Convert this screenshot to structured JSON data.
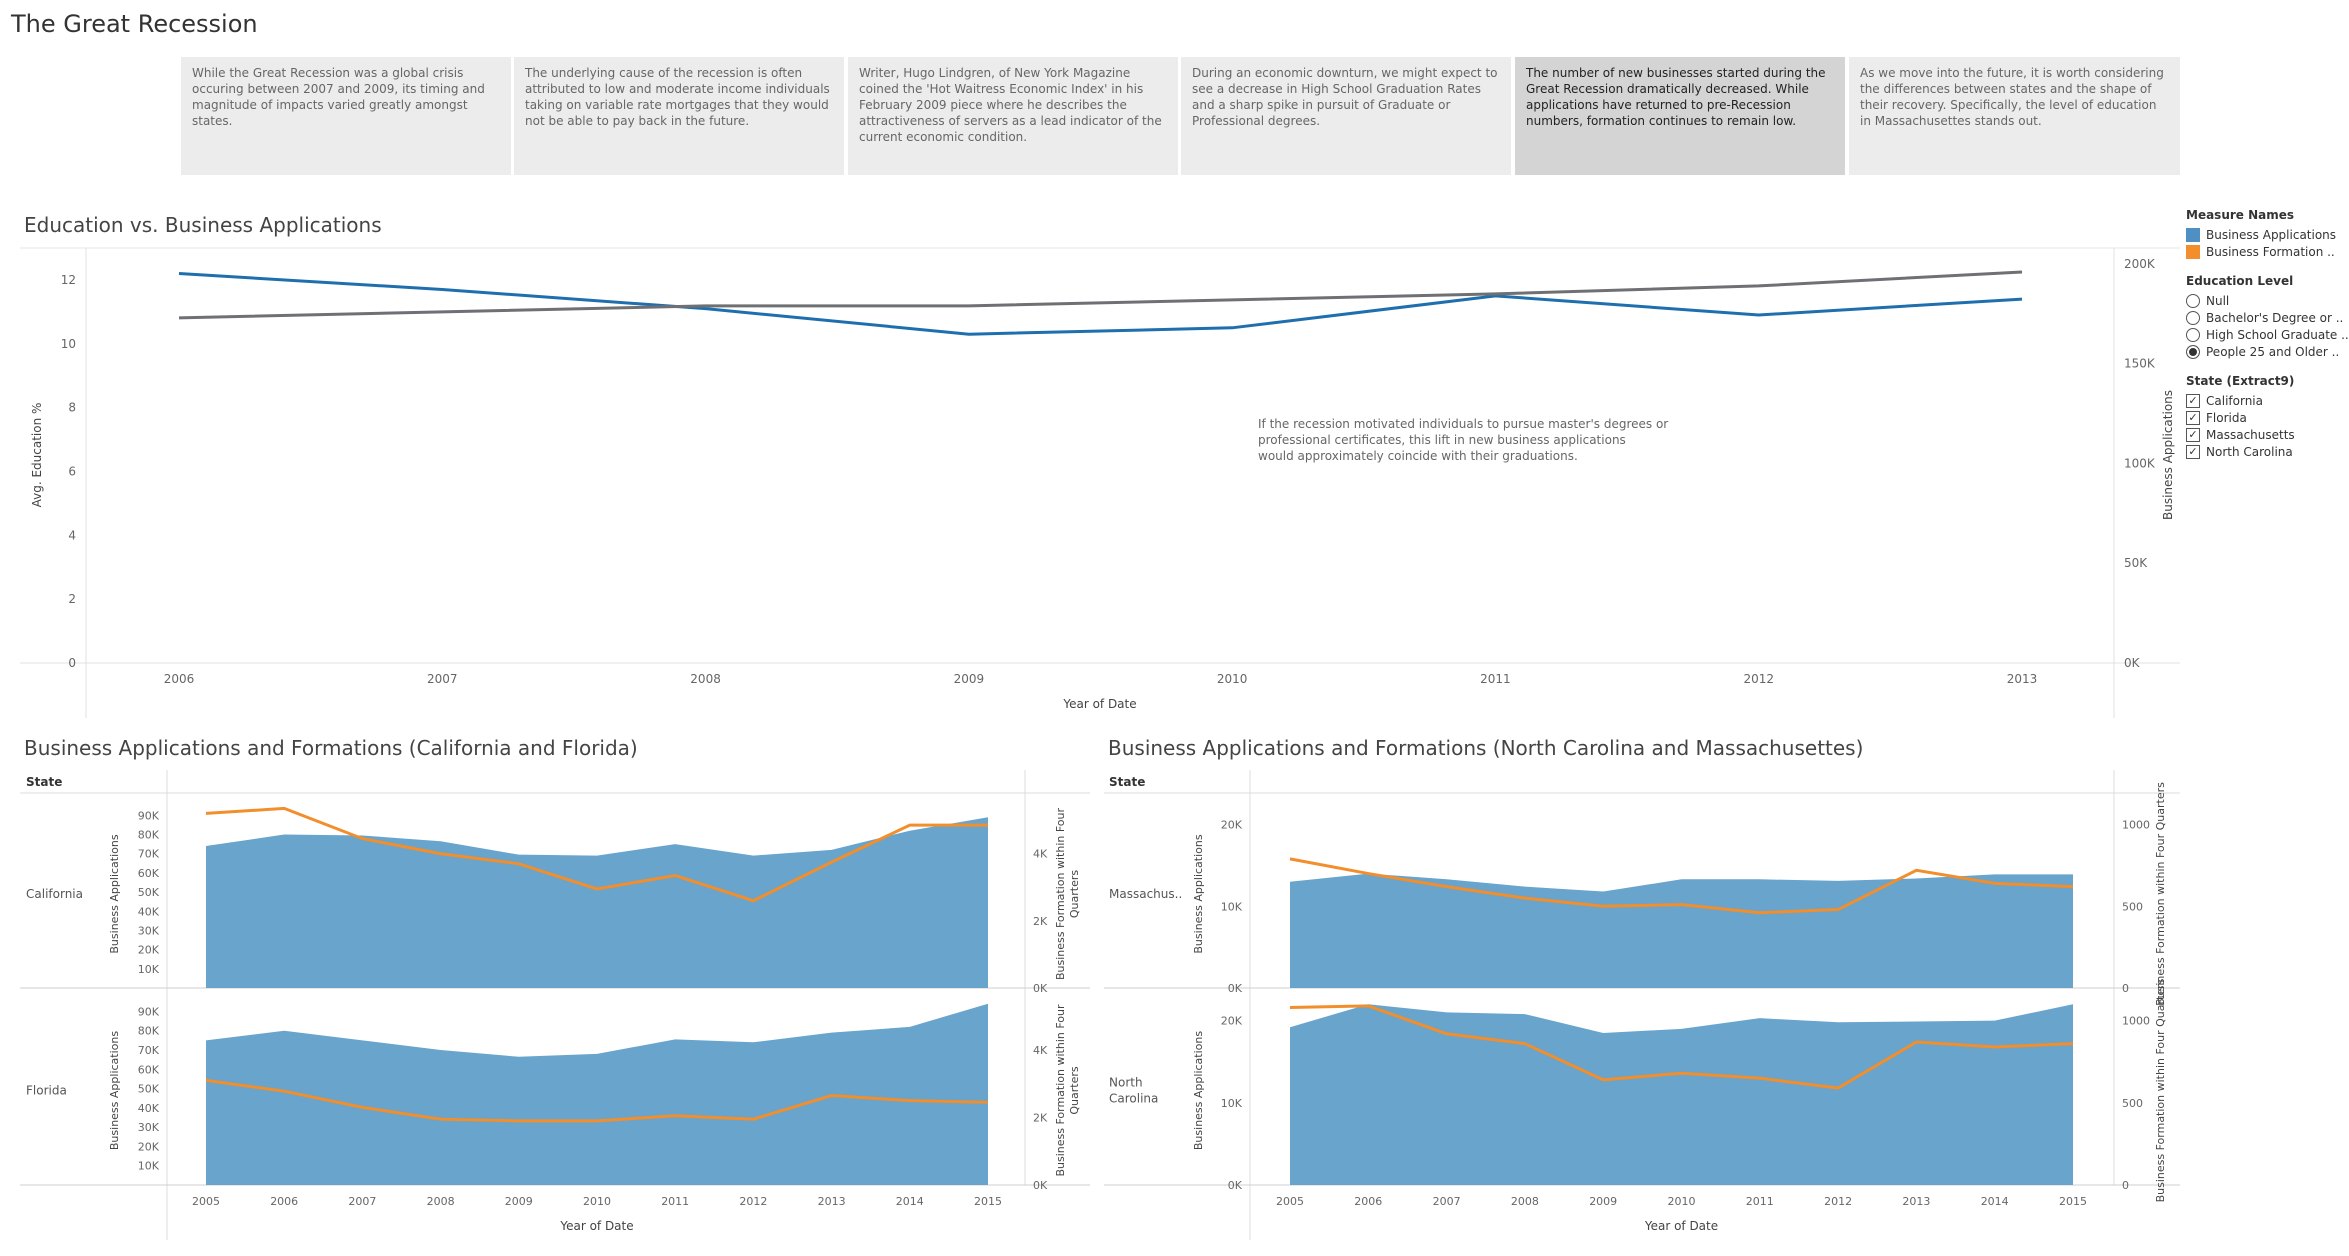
{
  "title": "The Great Recession",
  "story_points": [
    "While the Great Recession was a global crisis occuring between 2007 and 2009, its timing and magnitude of impacts varied greatly amongst states.",
    "The underlying cause of the recession is often attributed to low and moderate income individuals taking on variable rate mortgages that they would not be able to pay back in the future.",
    "Writer, Hugo Lindgren, of New York Magazine coined the 'Hot Waitress Economic Index' in his February 2009 piece where he describes the attractiveness of servers as a lead indicator of the current economic condition.",
    "During an economic downturn, we might expect to see a decrease in High School Graduation Rates and a sharp spike in pursuit of Graduate or Professional degrees.",
    "The number of new businesses started during the Great Recession dramatically decreased. While applications have returned to pre-Recession numbers, formation continues to remain low.",
    "As we move into the future, it is worth considering the differences between states and the shape of their recovery. Specifically, the level of education in Massachusettes stands out."
  ],
  "active_story_index": 4,
  "colors": {
    "blue": "#1f6fae",
    "gray": "#6f7074",
    "area": "#5b9cc8",
    "orange": "#f28e2b"
  },
  "legend": {
    "measure_title": "Measure Names",
    "measures": [
      {
        "label": "Business Applications",
        "color": "#4e8fc4"
      },
      {
        "label": "Business Formation ..",
        "color": "#f28e2b"
      }
    ],
    "education_title": "Education Level",
    "education": [
      {
        "label": "Null",
        "selected": false
      },
      {
        "label": "Bachelor's Degree or ..",
        "selected": false
      },
      {
        "label": "High School Graduate ..",
        "selected": false
      },
      {
        "label": "People 25 and Older ..",
        "selected": true
      }
    ],
    "state_title": "State (Extract9)",
    "states": [
      "California",
      "Florida",
      "Massachusetts",
      "North Carolina"
    ]
  },
  "chart_data": [
    {
      "type": "line",
      "title": "Education vs. Business Applications",
      "xlabel": "Year of Date",
      "ylabel": "Avg. Education %",
      "y2label": "Business Applications",
      "x": [
        2006,
        2007,
        2008,
        2009,
        2010,
        2011,
        2012,
        2013
      ],
      "ylim": [
        0,
        13
      ],
      "yticks": [
        0,
        2,
        4,
        6,
        8,
        10,
        12
      ],
      "y2lim": [
        0,
        208000
      ],
      "y2ticks": [
        0,
        50000,
        100000,
        150000,
        200000
      ],
      "y2ticklabels": [
        "0K",
        "50K",
        "100K",
        "150K",
        "200K"
      ],
      "series": [
        {
          "axis": "left",
          "color": "#1f6fae",
          "values": [
            12.2,
            11.7,
            11.1,
            10.3,
            10.5,
            11.5,
            10.9,
            11.4
          ]
        },
        {
          "axis": "right",
          "color": "#6f7074",
          "values": [
            173000,
            176000,
            179000,
            179000,
            182000,
            185000,
            189000,
            196000
          ]
        }
      ],
      "annotation": "If the recession motivated individuals to pursue master's degrees or professional certificates, this lift in new business applications would approximately coincide with their graduations."
    },
    {
      "type": "area",
      "title": "Business Applications and Formations (California and Florida)",
      "xlabel": "Year of Date",
      "row_header": "State",
      "x": [
        2005,
        2006,
        2007,
        2008,
        2009,
        2010,
        2011,
        2012,
        2013,
        2014,
        2015
      ],
      "panels": [
        {
          "state": "California",
          "ylabel": "Business Applications",
          "y2label": "Business Formation within Four Quarters",
          "ylim": [
            0,
            98000
          ],
          "yticks": [
            10000,
            20000,
            30000,
            40000,
            50000,
            60000,
            70000,
            80000,
            90000
          ],
          "yticklabels": [
            "10K",
            "20K",
            "30K",
            "40K",
            "50K",
            "60K",
            "70K",
            "80K",
            "90K"
          ],
          "y2lim": [
            0,
            5600
          ],
          "y2ticks": [
            0,
            2000,
            4000
          ],
          "y2ticklabels": [
            "0K",
            "2K",
            "4K"
          ],
          "applications": [
            74000,
            80000,
            79500,
            76500,
            69500,
            69000,
            75000,
            69000,
            72000,
            82000,
            89000
          ],
          "formations": [
            5200,
            5350,
            4450,
            4000,
            3700,
            2950,
            3350,
            2600,
            3750,
            4850,
            4850
          ]
        },
        {
          "state": "Florida",
          "ylabel": "Business Applications",
          "y2label": "Business Formation within Four Quarters",
          "ylim": [
            0,
            98000
          ],
          "yticks": [
            10000,
            20000,
            30000,
            40000,
            50000,
            60000,
            70000,
            80000,
            90000
          ],
          "yticklabels": [
            "10K",
            "20K",
            "30K",
            "40K",
            "50K",
            "60K",
            "70K",
            "80K",
            "90K"
          ],
          "y2lim": [
            0,
            5600
          ],
          "y2ticks": [
            0,
            2000,
            4000
          ],
          "y2ticklabels": [
            "0K",
            "2K",
            "4K"
          ],
          "applications": [
            75000,
            80000,
            75000,
            70000,
            66500,
            68000,
            75500,
            74000,
            79000,
            82000,
            94000
          ],
          "formations": [
            3100,
            2780,
            2300,
            1950,
            1900,
            1900,
            2050,
            1950,
            2650,
            2500,
            2450
          ]
        }
      ]
    },
    {
      "type": "area",
      "title": "Business Applications and Formations (North Carolina and Massachusettes)",
      "xlabel": "Year of Date",
      "row_header": "State",
      "x": [
        2005,
        2006,
        2007,
        2008,
        2009,
        2010,
        2011,
        2012,
        2013,
        2014,
        2015
      ],
      "panels": [
        {
          "state": "Massachus..",
          "ylabel": "Business Applications",
          "y2label": "Business Formation within Four Quarters",
          "ylim": [
            0,
            23000
          ],
          "yticks": [
            0,
            10000,
            20000
          ],
          "yticklabels": [
            "0K",
            "10K",
            "20K"
          ],
          "y2lim": [
            0,
            1150
          ],
          "y2ticks": [
            0,
            500,
            1000
          ],
          "y2ticklabels": [
            "0",
            "500",
            "1000"
          ],
          "applications": [
            13000,
            14000,
            13300,
            12400,
            11800,
            13300,
            13300,
            13100,
            13400,
            13900,
            13900
          ],
          "formations": [
            790,
            700,
            620,
            550,
            500,
            510,
            460,
            480,
            720,
            640,
            620
          ]
        },
        {
          "state": "North Carolina",
          "ylabel": "Business Applications",
          "y2label": "Business Formation within Four Quarters",
          "ylim": [
            0,
            23000
          ],
          "yticks": [
            0,
            10000,
            20000
          ],
          "yticklabels": [
            "0K",
            "10K",
            "20K"
          ],
          "y2lim": [
            0,
            1150
          ],
          "y2ticks": [
            0,
            500,
            1000
          ],
          "y2ticklabels": [
            "0",
            "500",
            "1000"
          ],
          "applications": [
            19200,
            22000,
            21000,
            20800,
            18500,
            19000,
            20300,
            19800,
            19900,
            20000,
            22000
          ],
          "formations": [
            1080,
            1090,
            920,
            860,
            640,
            680,
            650,
            590,
            870,
            840,
            860
          ]
        }
      ]
    }
  ]
}
